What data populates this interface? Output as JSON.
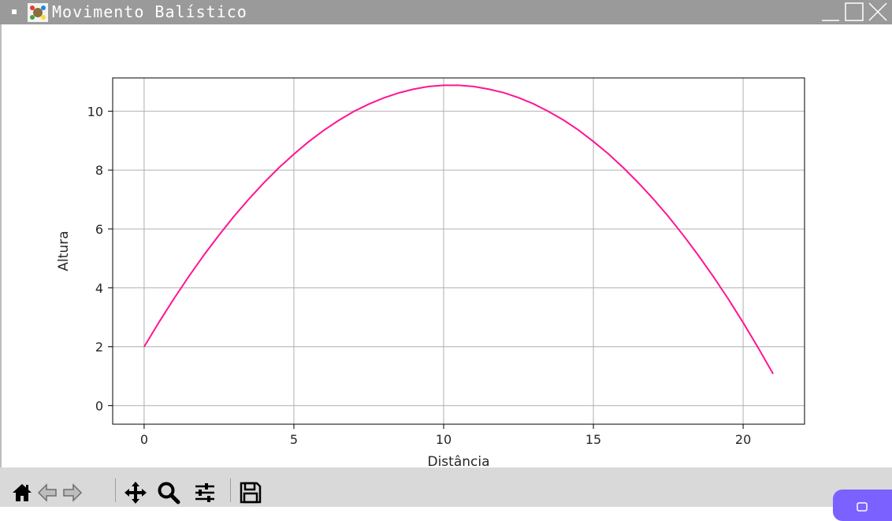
{
  "window": {
    "title": "Movimento Balístico",
    "controls": [
      "minimize-icon",
      "maximize-icon",
      "close-icon"
    ]
  },
  "toolbar": {
    "tools": [
      "home-icon",
      "back-arrow-icon",
      "forward-arrow-icon",
      "pan-icon",
      "zoom-icon",
      "configure-subplots-icon",
      "save-icon"
    ]
  },
  "colors": {
    "line": "#ff1493",
    "titlebar": "#9a9a9a",
    "toolbar": "#d9d9d9",
    "grid": "#b0b0b0"
  },
  "chart_data": {
    "type": "line",
    "title": "",
    "xlabel": "Distância",
    "ylabel": "Altura",
    "xlim": [
      -1.05,
      22.05
    ],
    "ylim": [
      -0.63,
      11.13
    ],
    "xticks": [
      0,
      5,
      10,
      15,
      20
    ],
    "yticks": [
      0,
      2,
      4,
      6,
      8,
      10
    ],
    "grid": true,
    "series": [
      {
        "color": "#ff1493",
        "x": [
          0,
          0.5,
          1,
          1.5,
          2,
          2.5,
          3,
          3.5,
          4,
          4.5,
          5,
          5.5,
          6,
          6.5,
          7,
          7.5,
          8,
          8.5,
          9,
          9.5,
          10,
          10.5,
          11,
          11.5,
          12,
          12.5,
          13,
          13.5,
          14,
          14.5,
          15,
          15.5,
          16,
          16.5,
          17,
          17.5,
          18,
          18.5,
          19,
          19.5,
          20,
          20.5,
          21
        ],
        "y": [
          2.0,
          2.84,
          3.64,
          4.4,
          5.12,
          5.79,
          6.43,
          7.02,
          7.57,
          8.08,
          8.54,
          8.97,
          9.35,
          9.69,
          9.99,
          10.24,
          10.45,
          10.62,
          10.75,
          10.84,
          10.88,
          10.88,
          10.84,
          10.75,
          10.63,
          10.46,
          10.25,
          9.99,
          9.7,
          9.36,
          8.97,
          8.55,
          8.08,
          7.57,
          7.02,
          6.43,
          5.79,
          5.11,
          4.39,
          3.63,
          2.82,
          1.97,
          1.08
        ]
      }
    ]
  }
}
